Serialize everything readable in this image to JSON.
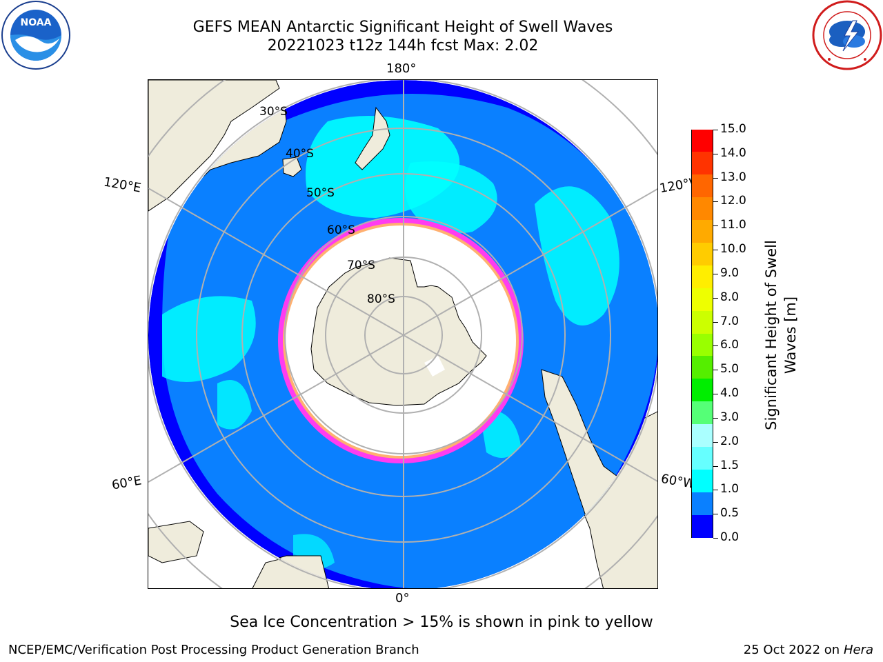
{
  "header": {
    "title_line1": "GEFS MEAN Antarctic Significant Height of Swell Waves",
    "title_line2": "20221023 t12z 144h fcst   Max: 2.02"
  },
  "logos": {
    "noaa": {
      "icon": "noaa-logo",
      "text": "NOAA"
    },
    "nws": {
      "icon": "nws-logo"
    }
  },
  "map": {
    "projection": "south-polar-stereographic",
    "lon_labels": {
      "top": "180°",
      "bottom": "0°",
      "left_upper": "120°E",
      "right_upper": "120°W",
      "left_lower": "60°E",
      "right_lower": "60°W"
    },
    "lat_labels": [
      "30°S",
      "40°S",
      "50°S",
      "60°S",
      "70°S",
      "80°S"
    ],
    "colors": {
      "land": "#efecdc",
      "ocean_low": "#0000ff",
      "ocean_mid": "#0a80ff",
      "ocean_high": "#00ffff",
      "ice_edge": "#ff3cf0",
      "ice": "#ffffff",
      "grid": "#b0b0b0"
    }
  },
  "colorbar": {
    "label": "Significant Height of Swell Waves [m]",
    "ticks": [
      "15.0",
      "14.0",
      "13.0",
      "12.0",
      "11.0",
      "10.0",
      "9.0",
      "8.0",
      "7.0",
      "6.0",
      "5.0",
      "4.0",
      "3.0",
      "2.0",
      "1.5",
      "1.0",
      "0.5",
      "0.0"
    ],
    "colors": [
      "#ff0000",
      "#ff3300",
      "#ff6600",
      "#ff8800",
      "#ffaa00",
      "#ffcc00",
      "#ffee00",
      "#eeff00",
      "#ccff00",
      "#99ff00",
      "#55ee00",
      "#00ee00",
      "#55ff77",
      "#aaffff",
      "#66ffff",
      "#00ffff",
      "#0a80ff",
      "#0000ff"
    ]
  },
  "caption": "Sea Ice Concentration > 15% is shown in pink to yellow",
  "footer": {
    "left": "NCEP/EMC/Verification Post Processing Product Generation Branch",
    "right_prefix": "25 Oct 2022 on ",
    "right_host": "Hera"
  }
}
